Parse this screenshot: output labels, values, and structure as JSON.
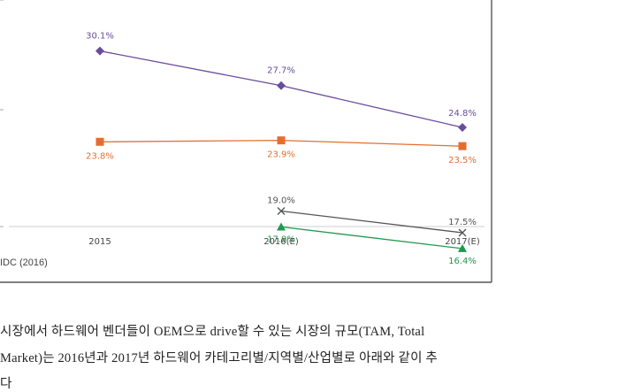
{
  "chart_data": {
    "type": "line",
    "categories": [
      "2015",
      "2016(E)",
      "2017(E)"
    ],
    "series": [
      {
        "values": [
          30.1,
          27.7,
          24.8
        ],
        "labels": [
          "30.1%",
          "27.7%",
          "24.8%"
        ],
        "color": "#6a4c9c",
        "marker": "diamond"
      },
      {
        "values": [
          23.8,
          23.9,
          23.5
        ],
        "labels": [
          "23.8%",
          "23.9%",
          "23.5%"
        ],
        "color": "#e36f2e",
        "marker": "square"
      },
      {
        "values": [
          null,
          19.0,
          17.5
        ],
        "labels": [
          null,
          "19.0%",
          "17.5%"
        ],
        "color": "#555555",
        "marker": "x"
      },
      {
        "values": [
          null,
          17.9,
          16.4
        ],
        "labels": [
          null,
          "17.9%",
          "16.4%"
        ],
        "color": "#1f9a4e",
        "marker": "triangle"
      }
    ],
    "xlabel": "",
    "ylabel": "",
    "ylim": [
      15,
      33
    ]
  },
  "source": "IDC (2016)",
  "paragraph": {
    "line1": "시장에서 하드웨어 벤더들이 OEM으로 drive할 수 있는 시장의 규모(TAM, Total",
    "line2": "Market)는 2016년과 2017년 하드웨어 카테고리별/지역별/산업별로 아래와 같이 추",
    "line3": "다"
  }
}
